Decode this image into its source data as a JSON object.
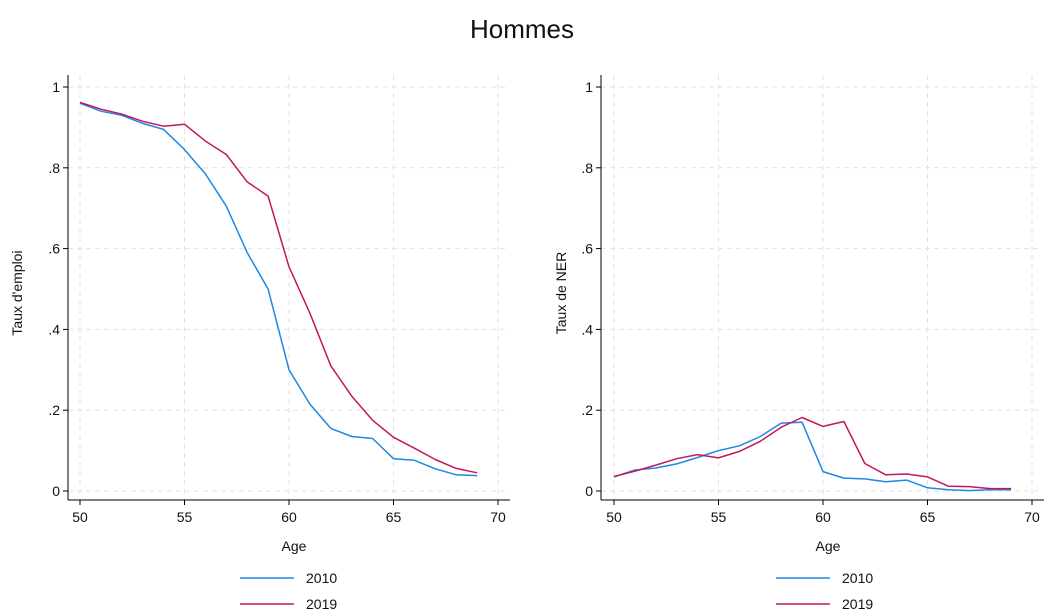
{
  "title": "Hommes",
  "chart_data": [
    {
      "type": "line",
      "ylabel": "Taux d'emploi",
      "xlabel": "Age",
      "xlim": [
        50,
        70
      ],
      "ylim": [
        0,
        1
      ],
      "xticks": [
        50,
        55,
        60,
        65,
        70
      ],
      "yticks": [
        0,
        0.2,
        0.4,
        0.6,
        0.8,
        1
      ],
      "yticklabels": [
        "0",
        ".2",
        ".4",
        ".6",
        ".8",
        "1"
      ],
      "grid": true,
      "legend_position": "bottom",
      "x": [
        50,
        51,
        52,
        53,
        54,
        55,
        56,
        57,
        58,
        59,
        60,
        61,
        62,
        63,
        64,
        65,
        66,
        67,
        68,
        69
      ],
      "series": [
        {
          "name": "2010",
          "color": "#1e88e5",
          "values": [
            0.96,
            0.94,
            0.93,
            0.91,
            0.895,
            0.845,
            0.785,
            0.705,
            0.59,
            0.5,
            0.3,
            0.215,
            0.155,
            0.135,
            0.13,
            0.08,
            0.076,
            0.055,
            0.04,
            0.038
          ]
        },
        {
          "name": "2019",
          "color": "#c2185b",
          "values": [
            0.962,
            0.945,
            0.933,
            0.915,
            0.903,
            0.908,
            0.866,
            0.833,
            0.765,
            0.73,
            0.555,
            0.44,
            0.31,
            0.235,
            0.175,
            0.133,
            0.106,
            0.078,
            0.056,
            0.045
          ]
        }
      ]
    },
    {
      "type": "line",
      "ylabel": "Taux de NER",
      "xlabel": "Age",
      "xlim": [
        50,
        70
      ],
      "ylim": [
        0,
        1
      ],
      "xticks": [
        50,
        55,
        60,
        65,
        70
      ],
      "yticks": [
        0,
        0.2,
        0.4,
        0.6,
        0.8,
        1
      ],
      "yticklabels": [
        "0",
        ".2",
        ".4",
        ".6",
        ".8",
        "1"
      ],
      "grid": true,
      "legend_position": "bottom",
      "x": [
        50,
        51,
        52,
        53,
        54,
        55,
        56,
        57,
        58,
        59,
        60,
        61,
        62,
        63,
        64,
        65,
        66,
        67,
        68,
        69
      ],
      "series": [
        {
          "name": "2010",
          "color": "#1e88e5",
          "values": [
            0.035,
            0.052,
            0.057,
            0.067,
            0.083,
            0.1,
            0.112,
            0.135,
            0.168,
            0.17,
            0.048,
            0.032,
            0.03,
            0.023,
            0.027,
            0.008,
            0.003,
            0.001,
            0.003,
            0.003
          ]
        },
        {
          "name": "2019",
          "color": "#c2185b",
          "values": [
            0.036,
            0.049,
            0.064,
            0.08,
            0.09,
            0.082,
            0.098,
            0.123,
            0.158,
            0.182,
            0.16,
            0.172,
            0.068,
            0.04,
            0.042,
            0.035,
            0.012,
            0.011,
            0.006,
            0.006
          ]
        }
      ]
    }
  ]
}
